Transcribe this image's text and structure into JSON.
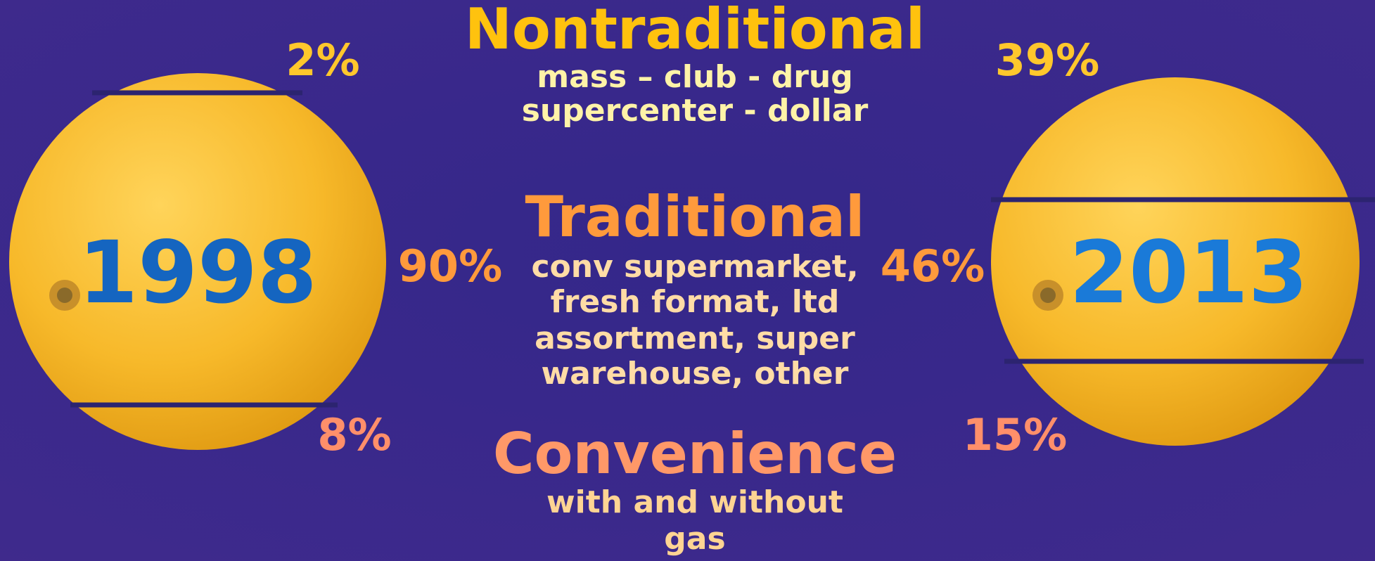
{
  "segments": [
    {
      "title": "Nontraditional",
      "description": [
        "mass – club - drug",
        "supercenter - dollar"
      ]
    },
    {
      "title": "Traditional",
      "description": [
        "conv supermarket,",
        "fresh format, ltd",
        "assortment, super",
        "warehouse, other"
      ]
    },
    {
      "title": "Convenience",
      "description": [
        "with and without",
        "gas"
      ]
    }
  ],
  "years": [
    {
      "label": "1998",
      "shares": [
        "2%",
        "90%",
        "8%"
      ]
    },
    {
      "label": "2013",
      "shares": [
        "39%",
        "46%",
        "15%"
      ]
    }
  ]
}
